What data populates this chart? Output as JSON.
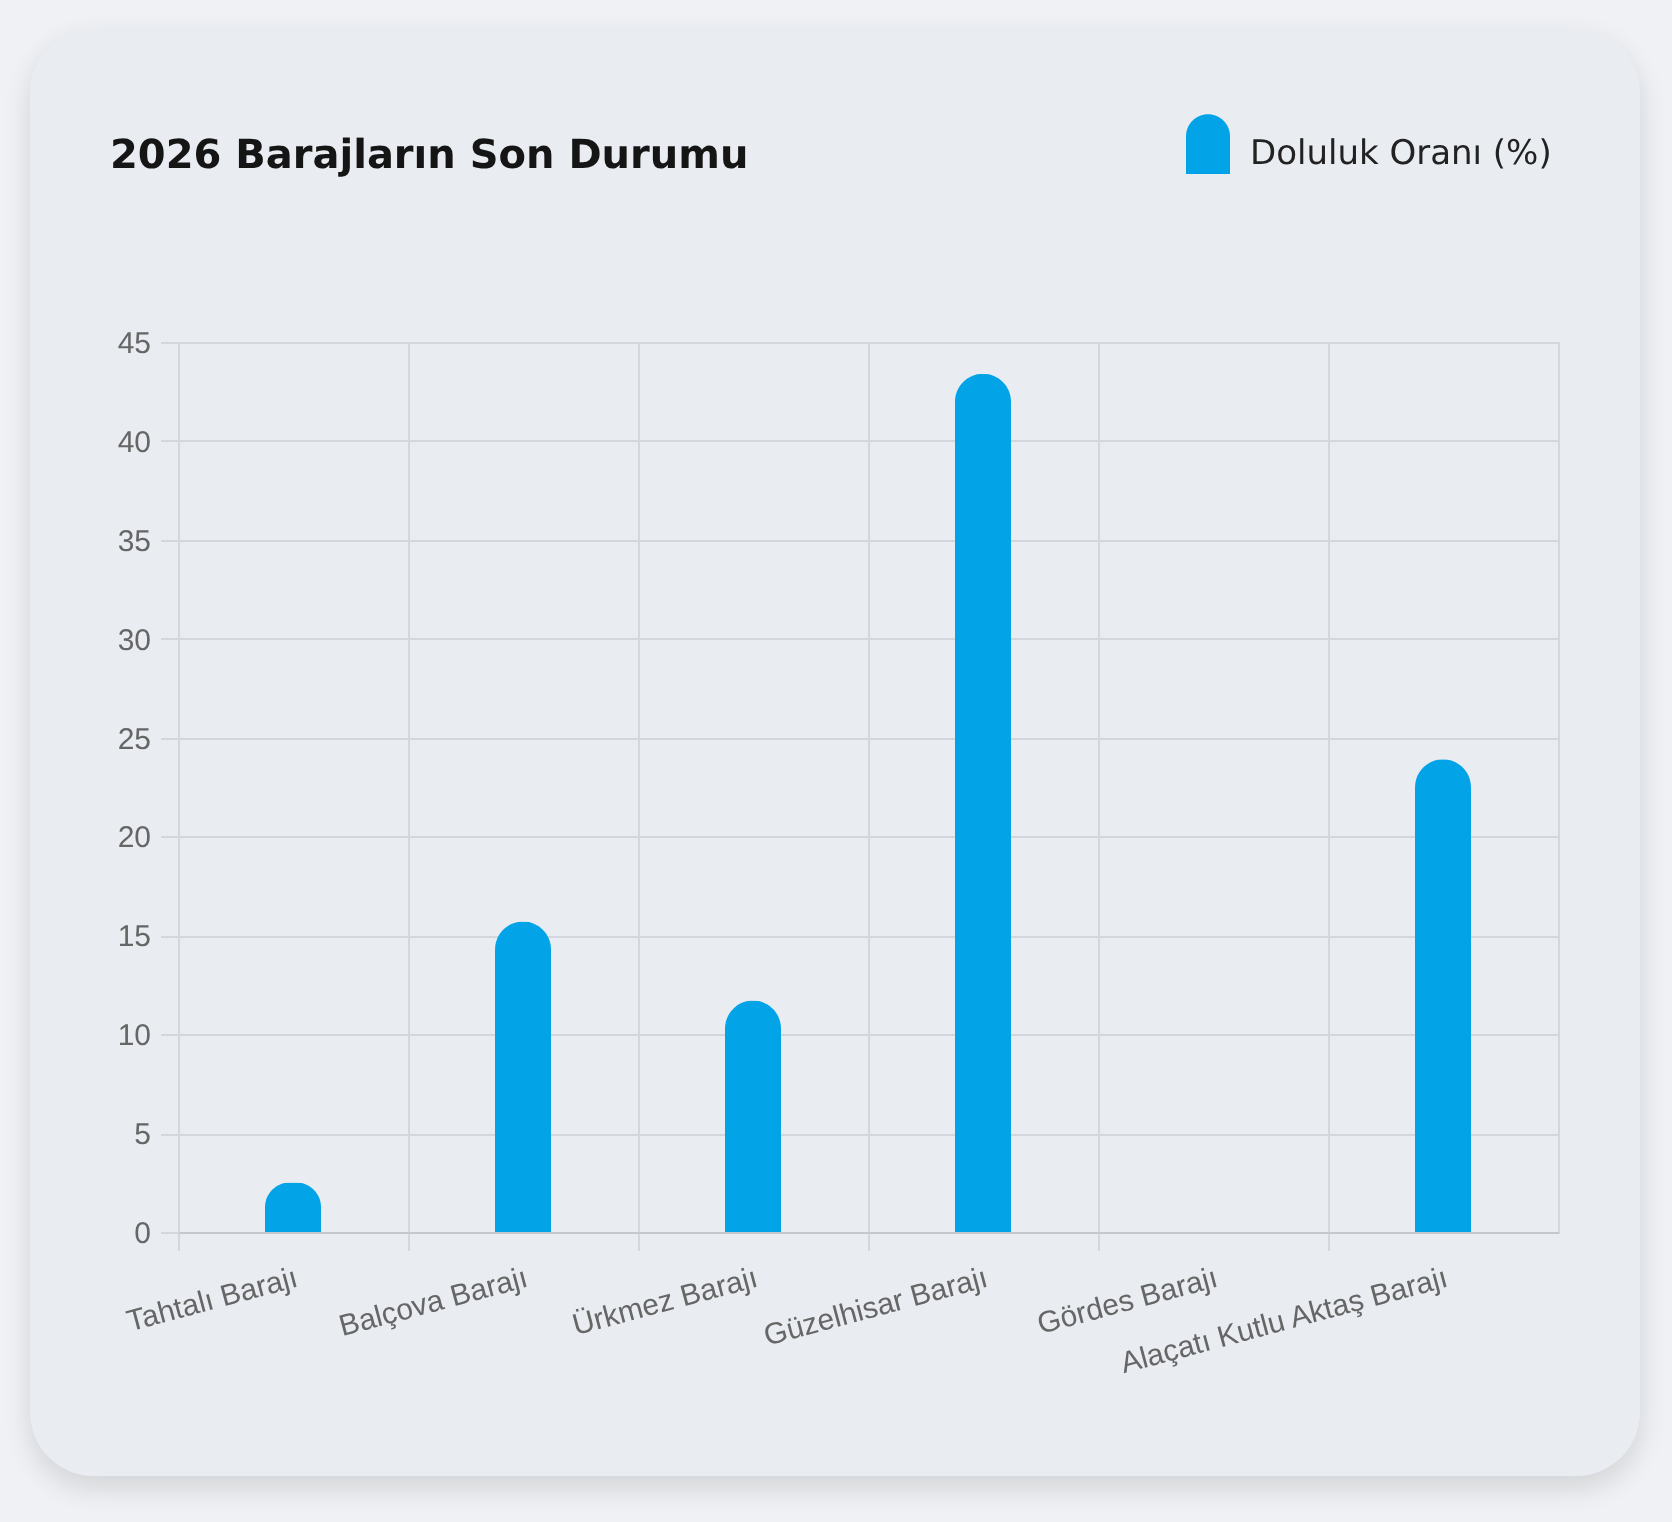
{
  "chart_data": {
    "type": "bar",
    "title": "2026 Barajların Son Durumu",
    "categories": [
      "Tahtalı Barajı",
      "Balçova Barajı",
      "Ürkmez Barajı",
      "Güzelhisar Barajı",
      "Gördes Barajı",
      "Alaçatı Kutlu Aktaş Barajı"
    ],
    "series": [
      {
        "name": "Doluluk Oranı (%)",
        "color": "#03a3e8",
        "values": [
          2.5,
          15.7,
          11.7,
          43.4,
          0,
          23.9
        ]
      }
    ],
    "ylim": [
      0,
      45
    ],
    "yticks": [
      0,
      5,
      10,
      15,
      20,
      25,
      30,
      35,
      40,
      45
    ],
    "grid": true,
    "legend": "top right"
  }
}
